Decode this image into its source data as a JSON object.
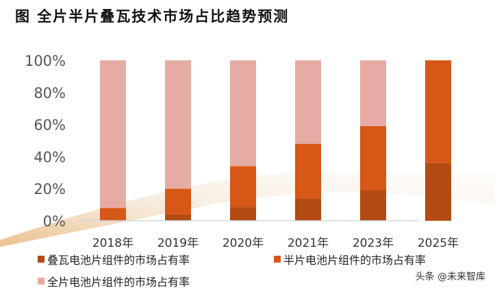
{
  "title": "图  全片半片叠瓦技术市场占比趋势预测",
  "watermark": "头条 @未来智库",
  "chart_data": {
    "type": "bar",
    "stacked": true,
    "categories": [
      "2018年",
      "2019年",
      "2020年",
      "2021年",
      "2023年",
      "2025年"
    ],
    "ylim": [
      0,
      100
    ],
    "yticks": [
      "0%",
      "20%",
      "40%",
      "60%",
      "80%",
      "100%"
    ],
    "grid": false,
    "legend_placement": "bottom",
    "series": [
      {
        "name": "叠瓦电池片组件的市场占有率",
        "color": "#b34a12",
        "values": [
          0.5,
          4,
          8.5,
          14,
          19,
          36
        ]
      },
      {
        "name": "半片电池片组件的市场占有率",
        "color": "#d75716",
        "values": [
          7.5,
          16,
          25.5,
          34,
          40,
          64
        ]
      },
      {
        "name": "全片电池片组件的市场占有率",
        "color": "#e6aca3",
        "values": [
          92,
          80,
          66,
          52,
          41,
          0
        ]
      }
    ]
  }
}
